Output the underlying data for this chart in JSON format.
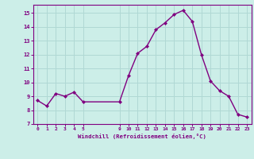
{
  "x": [
    0,
    1,
    2,
    3,
    4,
    5,
    9,
    10,
    11,
    12,
    13,
    14,
    15,
    16,
    17,
    18,
    19,
    20,
    21,
    22,
    23
  ],
  "y": [
    8.7,
    8.3,
    9.2,
    9.0,
    9.3,
    8.6,
    8.6,
    10.5,
    12.1,
    12.6,
    13.8,
    14.3,
    14.9,
    15.2,
    14.4,
    12.0,
    10.1,
    9.4,
    9.0,
    7.7,
    7.5
  ],
  "xlabel": "Windchill (Refroidissement éolien,°C)",
  "xticks": [
    0,
    1,
    2,
    3,
    4,
    5,
    9,
    10,
    11,
    12,
    13,
    14,
    15,
    16,
    17,
    18,
    19,
    20,
    21,
    22,
    23
  ],
  "yticks": [
    7,
    8,
    9,
    10,
    11,
    12,
    13,
    14,
    15
  ],
  "ylim": [
    7,
    15.6
  ],
  "xlim": [
    -0.5,
    23.5
  ],
  "bg_color": "#cceee8",
  "line_color": "#800080",
  "marker_color": "#800080",
  "grid_color": "#b0d8d4",
  "spine_color": "#800080"
}
